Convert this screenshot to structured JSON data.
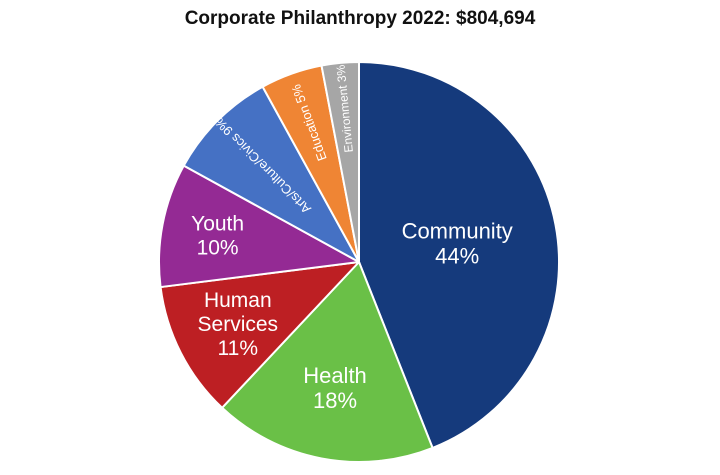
{
  "chart_data": {
    "type": "pie",
    "title": "Corporate Philanthropy 2022: $804,694",
    "slices": [
      {
        "label": "Community",
        "value": 44,
        "value_label": "44%",
        "color": "#153a7c"
      },
      {
        "label": "Health",
        "value": 18,
        "value_label": "18%",
        "color": "#6ac047"
      },
      {
        "label": "Human Services",
        "value": 11,
        "value_label": "11%",
        "color": "#bd1f23"
      },
      {
        "label": "Youth",
        "value": 10,
        "value_label": "10%",
        "color": "#942a94"
      },
      {
        "label": "Arts/Culture/Civics",
        "value": 9,
        "value_label": "9%",
        "color": "#4571c4"
      },
      {
        "label": "Education",
        "value": 5,
        "value_label": "5%",
        "color": "#ef8534"
      },
      {
        "label": "Environment",
        "value": 3,
        "value_label": "3%",
        "color": "#a6a6a6"
      }
    ],
    "slice_order": "clockwise from top",
    "legend": "none",
    "labels": "inside slices"
  }
}
